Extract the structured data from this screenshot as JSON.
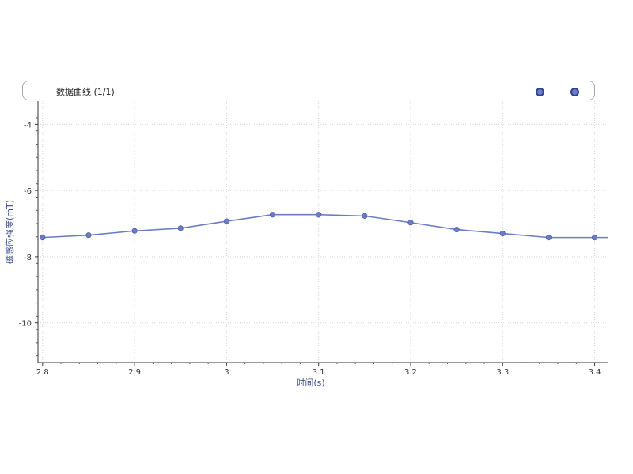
{
  "legend": {
    "title": "数据曲线 (1/1)"
  },
  "chart_data": {
    "type": "line",
    "title": "",
    "xlabel": "时间(s)",
    "ylabel": "磁感应强度(mT)",
    "xlim": [
      2.795,
      3.415
    ],
    "ylim": [
      -11.2,
      -3.3
    ],
    "xticks": [
      2.8,
      2.9,
      3.0,
      3.1,
      3.2,
      3.3,
      3.4
    ],
    "xtick_labels": [
      "2.8",
      "2.9",
      "3",
      "3.1",
      "3.2",
      "3.3",
      "3.4"
    ],
    "yticks": [
      -4,
      -6,
      -8,
      -10
    ],
    "ytick_labels": [
      "-4",
      "-6",
      "-8",
      "-10"
    ],
    "grid": true,
    "legend_position": "top",
    "series": [
      {
        "color": "#6c7dc4",
        "x": [
          2.8,
          2.85,
          2.9,
          2.95,
          3.0,
          3.05,
          3.1,
          3.15,
          3.2,
          3.25,
          3.3,
          3.35,
          3.4,
          3.415
        ],
        "y": [
          -7.42,
          -7.35,
          -7.22,
          -7.14,
          -6.93,
          -6.73,
          -6.73,
          -6.77,
          -6.97,
          -7.18,
          -7.3,
          -7.42,
          -7.42,
          -7.42
        ]
      }
    ]
  }
}
